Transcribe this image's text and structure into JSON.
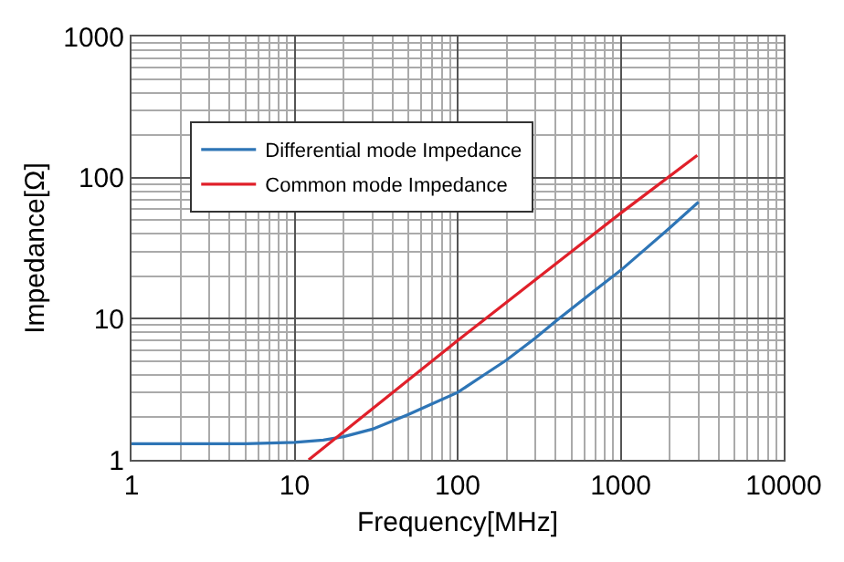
{
  "chart_data": {
    "type": "line",
    "xlabel": "Frequency[MHz]",
    "ylabel": "Impedance[Ω]",
    "log": "xy",
    "grid": true,
    "legend": "top left",
    "line_style": "solid",
    "marker": "none",
    "xlim": [
      1,
      10000
    ],
    "xticks": [
      1,
      10,
      100,
      1000,
      10000
    ],
    "ylim": [
      1,
      1000
    ],
    "yticks": [
      1,
      10,
      100,
      1000
    ],
    "series": [
      {
        "name": "Differential mode Impedance",
        "color": "#2e75b6",
        "x": [
          1,
          5,
          10,
          15,
          20,
          30,
          50,
          70,
          100,
          150,
          200,
          300,
          400,
          700,
          1000,
          2000,
          3000
        ],
        "values": [
          1.3,
          1.3,
          1.33,
          1.38,
          1.46,
          1.65,
          2.1,
          2.5,
          3.0,
          4.1,
          5.1,
          7.3,
          9.6,
          16,
          22,
          44,
          67
        ]
      },
      {
        "name": "Common mode Impedance",
        "color": "#e0202a",
        "x": [
          12.2,
          100,
          1000,
          2950
        ],
        "values": [
          1,
          7,
          56,
          144
        ]
      }
    ]
  }
}
